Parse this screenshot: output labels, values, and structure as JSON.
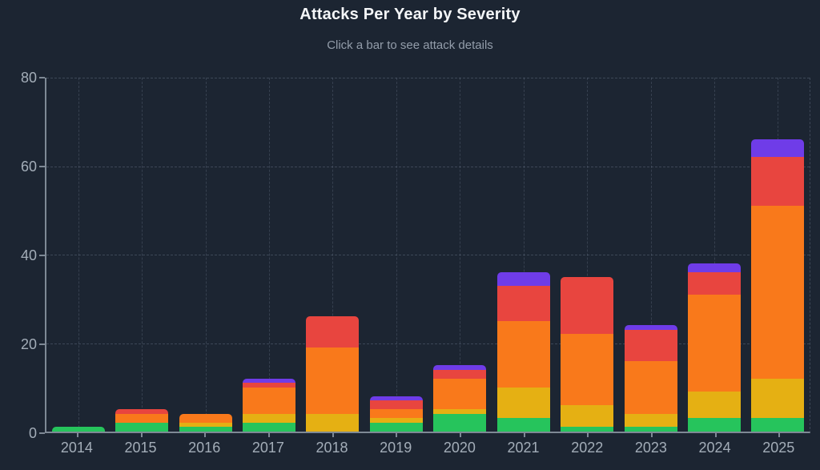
{
  "header": {
    "title": "Attacks Per Year by Severity",
    "subtitle": "Click a bar to see attack details"
  },
  "colors": {
    "background": "#1c2532",
    "axis": "#7e8995",
    "gridline": "rgba(148,163,184,0.28)",
    "title_text": "#f4f6f8",
    "subtitle_text": "#939daa",
    "tick_label_text": "#a3adb8",
    "severity_green": "#26c45c",
    "severity_yellow": "#e5b013",
    "severity_orange": "#f9791b",
    "severity_red": "#e8453f",
    "severity_purple": "#6f3ce8"
  },
  "chart_data": {
    "type": "bar",
    "stacked": true,
    "title": "Attacks Per Year by Severity",
    "subtitle": "Click a bar to see attack details",
    "xlabel": "",
    "ylabel": "",
    "categories": [
      "2014",
      "2015",
      "2016",
      "2017",
      "2018",
      "2019",
      "2020",
      "2021",
      "2022",
      "2023",
      "2024",
      "2025"
    ],
    "series": [
      {
        "name": "green",
        "color": "#26c45c",
        "values": [
          1,
          2,
          1,
          2,
          0,
          2,
          4,
          3,
          1,
          1,
          3,
          3
        ]
      },
      {
        "name": "yellow",
        "color": "#e5b013",
        "values": [
          0,
          0,
          1,
          2,
          4,
          1,
          1,
          7,
          5,
          3,
          6,
          9
        ]
      },
      {
        "name": "orange",
        "color": "#f9791b",
        "values": [
          0,
          2,
          2,
          6,
          15,
          2,
          7,
          15,
          16,
          12,
          22,
          39
        ]
      },
      {
        "name": "red",
        "color": "#e8453f",
        "values": [
          0,
          1,
          0,
          1,
          7,
          2,
          2,
          8,
          13,
          7,
          5,
          11
        ]
      },
      {
        "name": "purple",
        "color": "#6f3ce8",
        "values": [
          0,
          0,
          0,
          1,
          0,
          1,
          1,
          3,
          0,
          1,
          2,
          4
        ]
      }
    ],
    "totals": [
      1,
      5,
      4,
      12,
      26,
      8,
      15,
      36,
      35,
      24,
      38,
      66
    ],
    "ylim": [
      0,
      80
    ],
    "yticks": [
      0,
      20,
      40,
      60,
      80
    ],
    "grid": "dashed horizontal and vertical",
    "legend": "none"
  }
}
